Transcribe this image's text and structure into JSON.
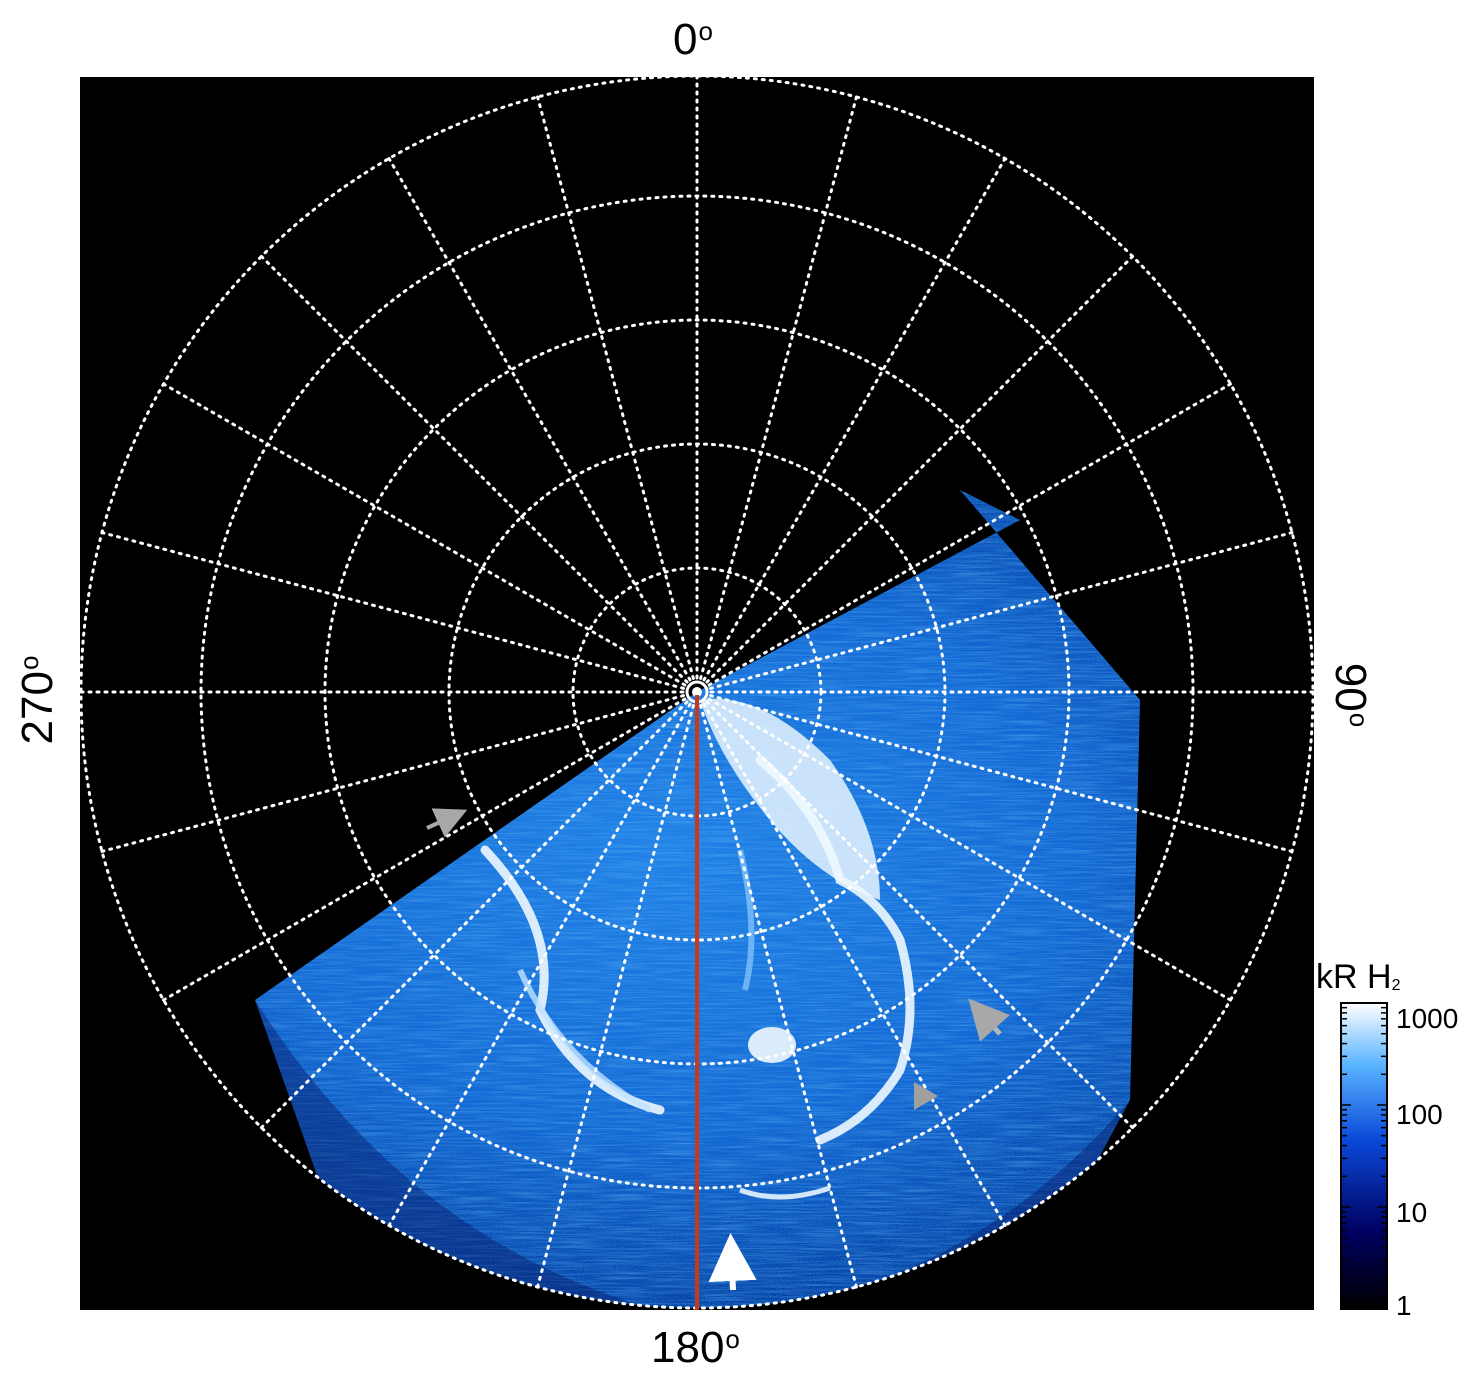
{
  "figure": {
    "longitude_labels": {
      "top": "0",
      "right": "90",
      "bottom": "180",
      "left": "270",
      "degree_symbol": "o"
    },
    "graticule": {
      "rings": 5,
      "meridian_count": 24,
      "style": "dotted",
      "color": "#ffffff"
    },
    "colorbar": {
      "unit_main": "kR H",
      "unit_sub": "2",
      "scale": "log",
      "range": [
        1,
        1000
      ],
      "ticks": [
        "1000",
        "100",
        "10",
        "1"
      ],
      "colors": [
        "#000000",
        "#000060",
        "#0a48d8",
        "#5ab4ff",
        "#ffffff"
      ]
    },
    "colors": {
      "background": "#000000",
      "central_meridian_line": "#c8391a",
      "arrow_white": "#ffffff",
      "arrow_gray": "#a8a8a8"
    },
    "annotations": [
      {
        "type": "arrow",
        "color": "gray",
        "points_to": "left polar boundary"
      },
      {
        "type": "arrow",
        "color": "gray",
        "points_to": "main oval dawn side"
      },
      {
        "type": "triangle",
        "color": "gray",
        "points_to": "main oval"
      },
      {
        "type": "arrow",
        "color": "white",
        "points_to": "equatorward arc"
      }
    ]
  }
}
